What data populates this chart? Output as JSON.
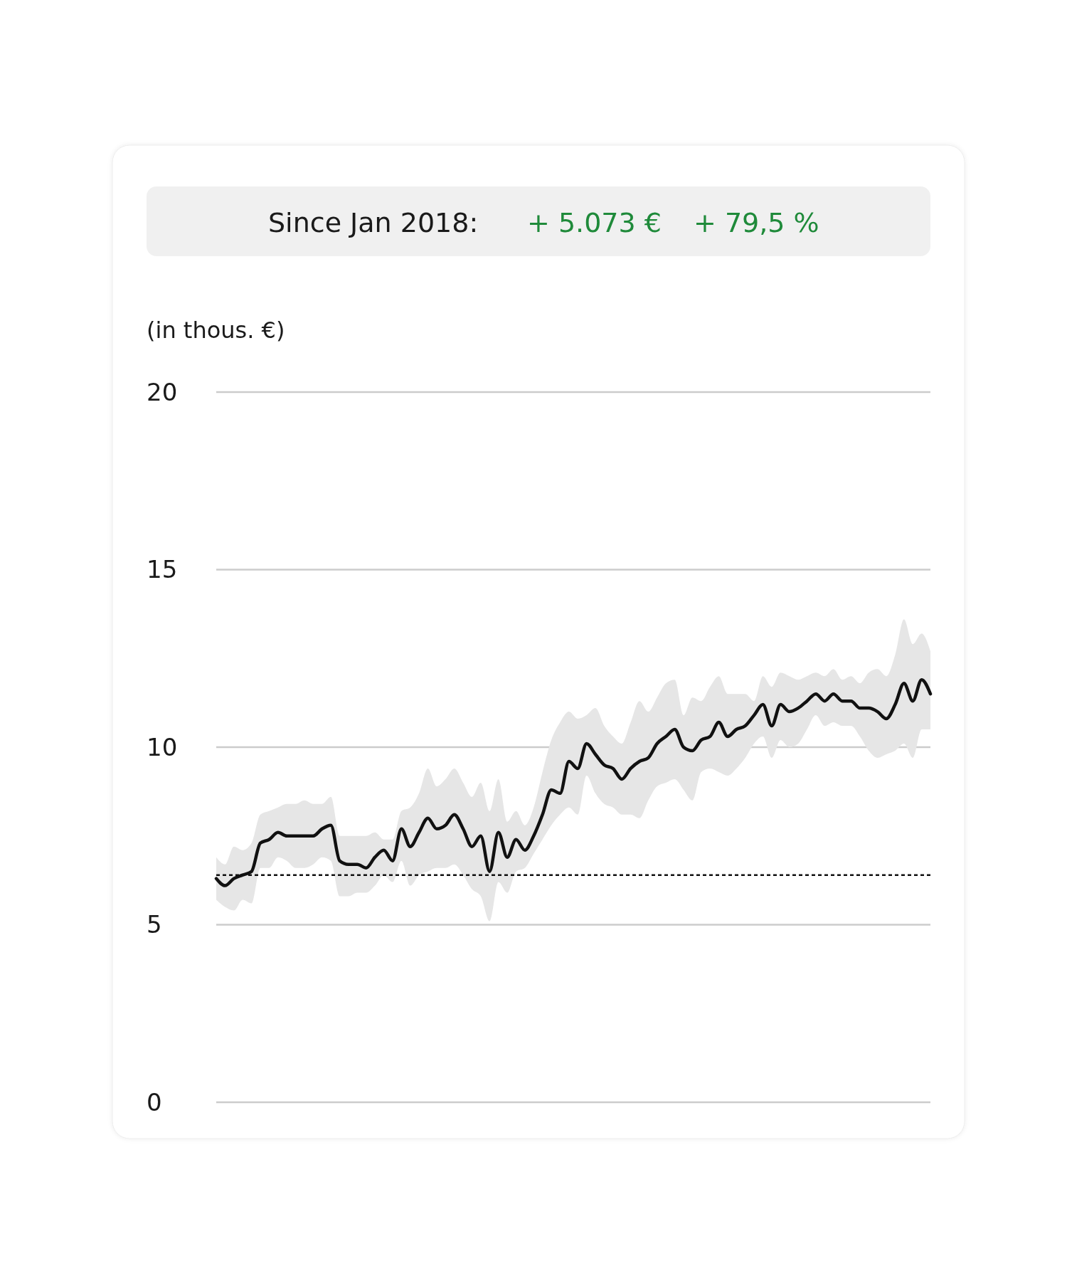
{
  "chart_data": {
    "type": "line",
    "title": "Since Jan 2018:",
    "annotations": [
      "+ 5.073 €",
      "+ 79,5 %"
    ],
    "ylabel": "(in thous. €)",
    "categories": [
      null,
      null,
      null,
      null,
      null,
      null,
      null,
      null,
      null,
      null,
      null,
      null,
      null,
      null,
      null,
      null,
      null,
      null,
      null,
      null,
      null,
      null,
      null,
      null,
      null,
      null,
      null,
      null,
      null,
      null,
      null,
      null,
      null,
      null,
      null,
      null,
      null,
      null,
      null,
      null,
      null,
      null,
      null,
      null,
      null,
      null,
      null,
      null,
      null,
      null,
      null,
      null,
      null,
      null,
      null,
      null,
      null,
      null,
      null,
      null,
      null,
      null,
      null,
      null,
      null,
      null,
      null,
      null,
      null,
      null,
      null,
      null,
      null,
      null,
      null,
      null,
      null,
      null,
      null,
      null,
      null,
      null
    ],
    "series": [
      {
        "color": "#111111",
        "values": [
          6.3,
          6.1,
          6.3,
          6.4,
          6.5,
          7.3,
          7.4,
          7.6,
          7.5,
          7.5,
          7.5,
          7.5,
          7.7,
          7.8,
          6.8,
          6.7,
          6.7,
          6.6,
          6.9,
          7.1,
          6.8,
          7.7,
          7.2,
          7.6,
          8.0,
          7.7,
          7.8,
          8.1,
          7.7,
          7.2,
          7.5,
          6.5,
          7.6,
          6.9,
          7.4,
          7.1,
          7.5,
          8.1,
          8.8,
          8.7,
          9.6,
          9.4,
          10.1,
          9.8,
          9.5,
          9.4,
          9.1,
          9.4,
          9.6,
          9.7,
          10.1,
          10.3,
          10.5,
          10.0,
          9.9,
          10.2,
          10.3,
          10.7,
          10.3,
          10.5,
          10.6,
          10.9,
          11.2,
          10.6,
          11.2,
          11.0,
          11.1,
          11.3,
          11.5,
          11.3,
          11.5,
          11.3,
          11.3,
          11.1,
          11.1,
          11.0,
          10.8,
          11.2,
          11.8,
          11.3,
          11.9,
          11.5
        ],
        "upper": [
          6.9,
          6.7,
          7.2,
          7.1,
          7.3,
          8.1,
          8.2,
          8.3,
          8.4,
          8.4,
          8.5,
          8.4,
          8.4,
          8.6,
          7.5,
          7.5,
          7.5,
          7.5,
          7.6,
          7.4,
          7.4,
          8.2,
          8.3,
          8.7,
          9.4,
          8.9,
          9.1,
          9.4,
          9.0,
          8.6,
          9.0,
          8.2,
          9.1,
          7.9,
          8.2,
          7.8,
          8.3,
          9.3,
          10.2,
          10.7,
          11.0,
          10.8,
          10.9,
          11.1,
          10.6,
          10.3,
          10.1,
          10.7,
          11.3,
          11.0,
          11.4,
          11.8,
          11.9,
          10.9,
          11.4,
          11.3,
          11.7,
          12.0,
          11.5,
          11.5,
          11.5,
          11.3,
          12.0,
          11.7,
          12.1,
          12.0,
          11.9,
          12.0,
          12.1,
          12.0,
          12.2,
          11.9,
          12.0,
          11.8,
          12.1,
          12.2,
          12.0,
          12.6,
          13.6,
          12.9,
          13.2,
          12.7
        ],
        "lower": [
          5.7,
          5.5,
          5.4,
          5.7,
          5.6,
          6.6,
          6.6,
          6.9,
          6.8,
          6.6,
          6.6,
          6.7,
          6.9,
          6.8,
          5.8,
          5.8,
          5.9,
          5.9,
          6.1,
          6.4,
          6.2,
          6.8,
          6.1,
          6.4,
          6.5,
          6.6,
          6.6,
          6.7,
          6.4,
          6.0,
          5.8,
          5.1,
          6.2,
          5.9,
          6.5,
          6.6,
          7.0,
          7.4,
          7.8,
          8.1,
          8.3,
          8.1,
          9.2,
          8.7,
          8.4,
          8.3,
          8.1,
          8.1,
          8.0,
          8.5,
          8.9,
          9.0,
          9.1,
          8.8,
          8.5,
          9.3,
          9.4,
          9.3,
          9.2,
          9.4,
          9.7,
          10.1,
          10.3,
          9.7,
          10.2,
          10.0,
          10.1,
          10.5,
          10.9,
          10.6,
          10.7,
          10.6,
          10.6,
          10.3,
          9.9,
          9.7,
          9.8,
          9.9,
          10.1,
          9.7,
          10.5,
          10.5
        ]
      }
    ],
    "ylim": [
      0,
      20
    ],
    "yticks": [
      0,
      5,
      10,
      15,
      20
    ],
    "grid": "y",
    "marker": "none",
    "line_style": "solid",
    "ref_lines": [
      {
        "axis": "y",
        "value": 6.4,
        "color": "#111111",
        "line_style": "dotted"
      }
    ]
  }
}
